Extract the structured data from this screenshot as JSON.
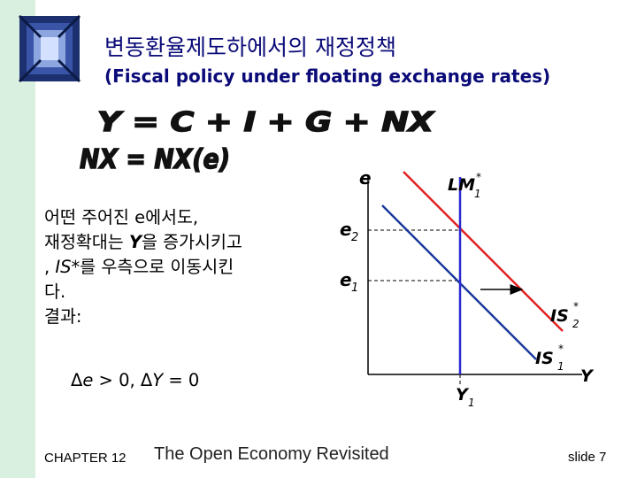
{
  "title": {
    "korean": "변동환율제도하에서의 재정정책",
    "english": "(Fiscal policy under floating exchange rates)"
  },
  "deco_text": [
    "Y = C + I + G + NX",
    "NX = NX(e)"
  ],
  "body": {
    "line1": "어떤 주어진 e에서도,",
    "line2_pre": "재정확대는 ",
    "line2_var": "Y",
    "line2_post": "을 증가시키고",
    "line3_pre": ", ",
    "line3_var": "IS*",
    "line3_post": "를 우측으로 이동시킨",
    "line4": "다.",
    "line5": "결과:"
  },
  "formula": {
    "delta1": "Δ",
    "var1": "e",
    "op1": " > 0,  ",
    "delta2": "Δ",
    "var2": "Y",
    "op2": " = 0"
  },
  "diagram": {
    "y_axis": "e",
    "x_axis": "Y",
    "lm_label": "LM",
    "lm_sub": "1",
    "is2_label": "IS",
    "is2_sub": "2",
    "is1_label": "IS",
    "is1_sub": "1",
    "star": "*",
    "e2_label": "e",
    "e2_sub": "2",
    "e1_label": "e",
    "e1_sub": "1",
    "y1_label": "Y",
    "y1_sub": "1",
    "colors": {
      "lm": "#2a2ad0",
      "is2": "#e02020",
      "is1": "#1a3a9a",
      "axis": "#000000"
    }
  },
  "footer": {
    "chapter": "CHAPTER 12",
    "title": "The Open Economy Revisited",
    "slide": "slide 7"
  }
}
